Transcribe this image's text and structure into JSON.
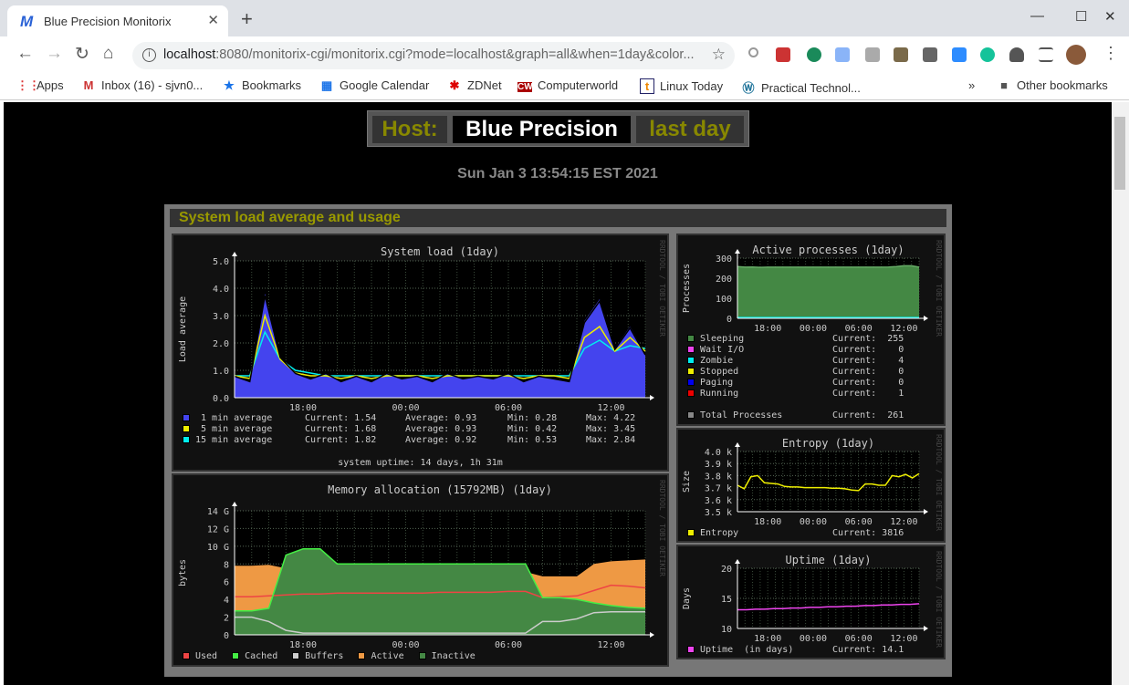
{
  "browser": {
    "tab_title": "Blue Precision Monitorix",
    "url_host": "localhost",
    "url_rest": ":8080/monitorix-cgi/monitorix.cgi?mode=localhost&graph=all&when=1day&color...",
    "bookmarks": [
      {
        "icon": "apps-icon",
        "label": "Apps"
      },
      {
        "icon": "gmail-icon",
        "label": "Inbox (16) - sjvn0..."
      },
      {
        "icon": "star-icon",
        "label": "Bookmarks"
      },
      {
        "icon": "google-calendar-icon",
        "label": "Google Calendar"
      },
      {
        "icon": "zdnet-icon",
        "label": "ZDNet"
      },
      {
        "icon": "computerworld-icon",
        "label": "Computerworld"
      },
      {
        "icon": "linux-today-icon",
        "label": "Linux Today"
      },
      {
        "icon": "wordpress-icon",
        "label": "Practical Technol..."
      }
    ],
    "other_bookmarks": "Other bookmarks",
    "more": "»"
  },
  "header": {
    "host_label": "Host:",
    "host_name": "Blue Precision",
    "period": "last day",
    "date": "Sun Jan 3 13:54:15 EST 2021"
  },
  "section": {
    "title": "System load average and usage"
  },
  "colors": {
    "olive": "#999900",
    "load1": "#4444ee",
    "load5": "#eeee00",
    "load15": "#00eeee",
    "used": "#ee4444",
    "cached": "#44ee44",
    "buffers": "#cccccc",
    "active": "#ee9944",
    "inactive": "#448844",
    "sleeping": "#448844",
    "waitio": "#ee44ee",
    "zombie": "#00eeee",
    "stopped": "#eeee00",
    "paging": "#0000ee",
    "running": "#ee0000",
    "total": "#888888",
    "entropy": "#eeee00",
    "uptime": "#ee44ee"
  },
  "watermark": "RRDTOOL / TOBI OETIKER",
  "charts": {
    "load": {
      "title": "System load  (1day)",
      "ylabel": "Load average",
      "yticks": [
        "0.0",
        "1.0",
        "2.0",
        "3.0",
        "4.0",
        "5.0"
      ],
      "ymax": 5,
      "xticks": [
        "18:00",
        "00:00",
        "06:00",
        "12:00"
      ],
      "series": {
        "load1": [
          0.8,
          0.6,
          3.8,
          1.5,
          0.9,
          0.7,
          0.9,
          0.6,
          0.8,
          0.6,
          0.9,
          0.7,
          0.8,
          0.6,
          0.9,
          0.7,
          0.8,
          0.7,
          0.9,
          0.6,
          0.8,
          0.7,
          0.6,
          2.8,
          3.6,
          1.8,
          2.6,
          1.6
        ],
        "load5": [
          0.8,
          0.7,
          3.0,
          1.4,
          0.9,
          0.8,
          0.8,
          0.7,
          0.8,
          0.7,
          0.8,
          0.8,
          0.8,
          0.7,
          0.8,
          0.8,
          0.8,
          0.8,
          0.8,
          0.7,
          0.8,
          0.8,
          0.7,
          2.2,
          2.6,
          1.7,
          2.2,
          1.7
        ],
        "load15": [
          0.8,
          0.8,
          2.4,
          1.4,
          1.0,
          0.9,
          0.8,
          0.8,
          0.8,
          0.8,
          0.8,
          0.8,
          0.8,
          0.8,
          0.8,
          0.8,
          0.8,
          0.8,
          0.8,
          0.8,
          0.8,
          0.8,
          0.8,
          1.8,
          2.1,
          1.7,
          1.9,
          1.8
        ]
      },
      "legend": [
        {
          "key": "load1",
          "label": " 1 min average",
          "current": "Current: 1.54",
          "average": "Average: 0.93",
          "min": "Min: 0.28",
          "max": "Max: 4.22"
        },
        {
          "key": "load5",
          "label": " 5 min average",
          "current": "Current: 1.68",
          "average": "Average: 0.93",
          "min": "Min: 0.42",
          "max": "Max: 3.45"
        },
        {
          "key": "load15",
          "label": "15 min average",
          "current": "Current: 1.82",
          "average": "Average: 0.92",
          "min": "Min: 0.53",
          "max": "Max: 2.84"
        }
      ],
      "footer": "system uptime: 14 days, 1h 31m"
    },
    "memory": {
      "title": "Memory allocation (15792MB)  (1day)",
      "ylabel": "bytes",
      "yticks": [
        "0",
        "2",
        "4",
        "6",
        "8",
        "10 G",
        "12 G",
        "14 G"
      ],
      "ymax": 14,
      "xticks": [
        "18:00",
        "00:00",
        "06:00",
        "12:00"
      ],
      "series": {
        "active": [
          7.8,
          7.8,
          7.9,
          7.5,
          7.1,
          7.1,
          7.1,
          7.1,
          7.1,
          7.1,
          7.1,
          7.1,
          7.1,
          7.1,
          7.1,
          7.1,
          7.1,
          7.1,
          6.6,
          6.6,
          6.6,
          8.0,
          8.3,
          8.4,
          8.5
        ],
        "cached": [
          2.7,
          2.7,
          3.0,
          9.0,
          9.7,
          9.7,
          8.0,
          8.0,
          8.0,
          8.0,
          8.0,
          8.0,
          8.0,
          8.0,
          8.0,
          8.0,
          8.0,
          8.0,
          4.2,
          4.2,
          4.0,
          3.6,
          3.3,
          3.1,
          3.0
        ],
        "used": [
          4.3,
          4.3,
          4.4,
          4.5,
          4.6,
          4.6,
          4.7,
          4.7,
          4.7,
          4.7,
          4.7,
          4.7,
          4.8,
          4.8,
          4.8,
          4.8,
          4.9,
          4.9,
          4.2,
          4.3,
          4.4,
          5.0,
          5.6,
          5.5,
          5.3
        ],
        "buffers": [
          2.0,
          2.0,
          1.5,
          0.5,
          0.2,
          0.2,
          0.2,
          0.2,
          0.2,
          0.2,
          0.2,
          0.2,
          0.2,
          0.2,
          0.2,
          0.2,
          0.2,
          0.2,
          1.5,
          1.5,
          1.8,
          2.5,
          2.6,
          2.6,
          2.6
        ]
      },
      "legend": [
        {
          "key": "used",
          "label": "Used"
        },
        {
          "key": "cached",
          "label": "Cached"
        },
        {
          "key": "buffers",
          "label": "Buffers"
        },
        {
          "key": "active",
          "label": "Active"
        },
        {
          "key": "inactive",
          "label": "Inactive"
        }
      ]
    },
    "processes": {
      "title": "Active processes  (1day)",
      "ylabel": "Processes",
      "yticks": [
        "0",
        "100",
        "200",
        "300"
      ],
      "ymax": 300,
      "xticks": [
        "18:00",
        "00:00",
        "06:00",
        "12:00"
      ],
      "series": {
        "sleeping": [
          258,
          255,
          256,
          254,
          255,
          255,
          255,
          255,
          255,
          255,
          255,
          255,
          255,
          255,
          255,
          255,
          255,
          255,
          255,
          255,
          256,
          258,
          262,
          262,
          255
        ],
        "zombie": [
          4,
          4,
          4,
          4,
          4,
          4,
          4,
          4,
          4,
          4,
          4,
          4,
          4,
          4,
          4,
          4,
          4,
          4,
          4,
          4,
          4,
          4,
          4,
          4,
          4
        ]
      },
      "legend": [
        {
          "key": "sleeping",
          "label": "Sleeping",
          "current": "Current:  255"
        },
        {
          "key": "waitio",
          "label": "Wait I/O",
          "current": "Current:    0"
        },
        {
          "key": "zombie",
          "label": "Zombie",
          "current": "Current:    4"
        },
        {
          "key": "stopped",
          "label": "Stopped",
          "current": "Current:    0"
        },
        {
          "key": "paging",
          "label": "Paging",
          "current": "Current:    0"
        },
        {
          "key": "running",
          "label": "Running",
          "current": "Current:    1"
        }
      ],
      "total": {
        "key": "total",
        "label": "Total Processes",
        "current": "Current:  261"
      }
    },
    "entropy": {
      "title": "Entropy  (1day)",
      "ylabel": "Size",
      "yticks": [
        "3.5 k",
        "3.6 k",
        "3.7 k",
        "3.8 k",
        "3.9 k",
        "4.0 k"
      ],
      "ymin": 3500,
      "ymax": 4000,
      "xticks": [
        "18:00",
        "00:00",
        "06:00",
        "12:00"
      ],
      "series": {
        "entropy": [
          3720,
          3690,
          3790,
          3800,
          3740,
          3735,
          3730,
          3710,
          3705,
          3705,
          3700,
          3700,
          3700,
          3700,
          3695,
          3695,
          3690,
          3680,
          3675,
          3730,
          3730,
          3720,
          3720,
          3800,
          3790,
          3810,
          3780,
          3816
        ]
      },
      "legend": [
        {
          "key": "entropy",
          "label": "Entropy",
          "current": "Current: 3816"
        }
      ]
    },
    "uptime": {
      "title": "Uptime  (1day)",
      "ylabel": "Days",
      "yticks": [
        "10",
        "15",
        "20"
      ],
      "ymin": 10,
      "ymax": 20,
      "xticks": [
        "18:00",
        "00:00",
        "06:00",
        "12:00"
      ],
      "series": {
        "uptime": [
          13.1,
          13.1,
          13.2,
          13.2,
          13.3,
          13.3,
          13.4,
          13.4,
          13.5,
          13.5,
          13.6,
          13.6,
          13.7,
          13.7,
          13.8,
          13.8,
          13.9,
          13.9,
          14.0,
          14.0,
          14.1
        ]
      },
      "legend": [
        {
          "key": "uptime",
          "label": "Uptime  (in days)",
          "current": "Current: 14.1"
        }
      ]
    }
  }
}
